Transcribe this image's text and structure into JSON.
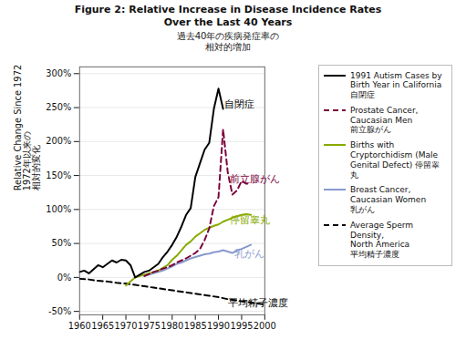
{
  "chart_data": {
    "type": "line",
    "title": "Figure 2: Relative Increase in Disease Incidence Rates\nOver the Last 40 Years",
    "subtitle": "過去40年の疾病発症率の\n相対的増加",
    "y_label": "Relative Change Since 1972\n1972年以来の\n相対的変化",
    "xlim": [
      1960,
      2000
    ],
    "ylim": [
      -0.55,
      3.1
    ],
    "xticks": [
      1960,
      1965,
      1970,
      1975,
      1980,
      1985,
      1990,
      1995,
      2000
    ],
    "yticks": [
      {
        "value": -0.5,
        "label": "-50%"
      },
      {
        "value": 0.0,
        "label": "0%"
      },
      {
        "value": 0.5,
        "label": "50%"
      },
      {
        "value": 1.0,
        "label": "100%"
      },
      {
        "value": 1.5,
        "label": "150%"
      },
      {
        "value": 2.0,
        "label": "200%"
      },
      {
        "value": 2.5,
        "label": "250%"
      },
      {
        "value": 3.0,
        "label": "300%"
      }
    ],
    "grid": true,
    "legend": "right",
    "series": [
      {
        "name": "1991 Autism Cases by\nBirth Year in California\n自閉症",
        "color": "#000000",
        "line_style": "solid",
        "x": [
          1960,
          1961,
          1962,
          1963,
          1964,
          1965,
          1966,
          1967,
          1968,
          1969,
          1970,
          1971,
          1972,
          1973,
          1974,
          1975,
          1976,
          1977,
          1978,
          1979,
          1980,
          1981,
          1982,
          1983,
          1984,
          1985,
          1986,
          1987,
          1988,
          1989,
          1990,
          1991
        ],
        "values": [
          0.08,
          0.1,
          0.06,
          0.12,
          0.18,
          0.15,
          0.2,
          0.25,
          0.22,
          0.26,
          0.25,
          0.18,
          0.0,
          0.04,
          0.08,
          0.1,
          0.15,
          0.2,
          0.3,
          0.38,
          0.48,
          0.6,
          0.75,
          0.92,
          1.02,
          1.48,
          1.68,
          1.88,
          1.98,
          2.48,
          2.78,
          2.48
        ]
      },
      {
        "name": "Prostate Cancer,\nCaucasian Men\n前立腺がん",
        "color": "#7b003b",
        "line_style": "dashed",
        "x": [
          1974,
          1975,
          1976,
          1977,
          1978,
          1979,
          1980,
          1981,
          1982,
          1983,
          1984,
          1985,
          1986,
          1987,
          1988,
          1989,
          1990,
          1991,
          1992,
          1993,
          1994,
          1995,
          1996,
          1997
        ],
        "values": [
          0.02,
          0.05,
          0.08,
          0.1,
          0.13,
          0.15,
          0.18,
          0.22,
          0.25,
          0.28,
          0.32,
          0.36,
          0.42,
          0.55,
          0.72,
          1.05,
          1.18,
          2.18,
          1.55,
          1.22,
          1.28,
          1.42,
          1.38,
          1.38
        ]
      },
      {
        "name": "Births with\nCryptorchidism (Male\nGenital Defect) 停留睾丸",
        "color": "#88aa00",
        "line_style": "solid",
        "x": [
          1970,
          1971,
          1972,
          1973,
          1974,
          1975,
          1976,
          1977,
          1978,
          1979,
          1980,
          1981,
          1982,
          1983,
          1984,
          1985,
          1986,
          1987,
          1988,
          1989,
          1990,
          1991,
          1992,
          1993,
          1994,
          1995,
          1996,
          1997
        ],
        "values": [
          -0.12,
          -0.06,
          0.0,
          0.02,
          0.04,
          0.06,
          0.08,
          0.1,
          0.14,
          0.18,
          0.26,
          0.32,
          0.4,
          0.48,
          0.53,
          0.6,
          0.65,
          0.7,
          0.73,
          0.76,
          0.78,
          0.82,
          0.85,
          0.88,
          0.9,
          0.92,
          0.93,
          0.92
        ]
      },
      {
        "name": "Breast Cancer,\nCaucasian Women\n乳がん",
        "color": "#8899cc",
        "line_style": "solid",
        "x": [
          1974,
          1975,
          1976,
          1977,
          1978,
          1979,
          1980,
          1981,
          1982,
          1983,
          1984,
          1985,
          1986,
          1987,
          1988,
          1989,
          1990,
          1991,
          1992,
          1993,
          1994,
          1995,
          1996,
          1997
        ],
        "values": [
          0.02,
          0.04,
          0.06,
          0.08,
          0.1,
          0.13,
          0.16,
          0.2,
          0.22,
          0.25,
          0.28,
          0.3,
          0.32,
          0.34,
          0.35,
          0.37,
          0.38,
          0.4,
          0.38,
          0.36,
          0.4,
          0.42,
          0.45,
          0.48
        ]
      },
      {
        "name": "Average Sperm Density,\nNorth America\n平均精子濃度",
        "color": "#000000",
        "line_style": "dashed",
        "x": [
          1960,
          1962,
          1964,
          1966,
          1968,
          1970,
          1972,
          1974,
          1976,
          1978,
          1980,
          1982,
          1984,
          1986,
          1988,
          1990,
          1992,
          1994,
          1996,
          1998,
          2000
        ],
        "values": [
          -0.02,
          -0.03,
          -0.05,
          -0.06,
          -0.08,
          -0.09,
          -0.11,
          -0.13,
          -0.15,
          -0.17,
          -0.19,
          -0.21,
          -0.23,
          -0.25,
          -0.27,
          -0.29,
          -0.32,
          -0.34,
          -0.36,
          -0.38,
          -0.4
        ]
      }
    ],
    "annotations": [
      {
        "text": "自閉症",
        "x": 1991.3,
        "y": 2.55,
        "color": "#000000"
      },
      {
        "text": "前立腺がん",
        "x": 1992.5,
        "y": 1.45,
        "color": "#7b003b"
      },
      {
        "text": "停留睾丸",
        "x": 1992.5,
        "y": 0.85,
        "color": "#88aa00"
      },
      {
        "text": "乳がん",
        "x": 1993.5,
        "y": 0.35,
        "color": "#8899cc"
      },
      {
        "text": "平均精子濃度",
        "x": 1992.0,
        "y": -0.38,
        "color": "#000000"
      }
    ]
  }
}
